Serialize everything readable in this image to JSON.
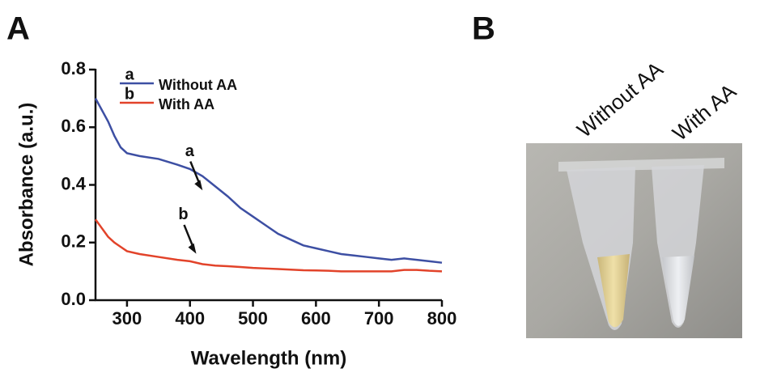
{
  "panel_labels": [
    "A",
    "B"
  ],
  "chart_data": {
    "type": "line",
    "xlabel": "Wavelength (nm)",
    "ylabel": "Absorbance (a.u.)",
    "x": [
      250,
      260,
      270,
      280,
      290,
      300,
      320,
      350,
      380,
      400,
      420,
      440,
      460,
      480,
      500,
      520,
      540,
      560,
      580,
      600,
      620,
      640,
      660,
      680,
      700,
      720,
      740,
      760,
      780,
      800
    ],
    "series": [
      {
        "name": "Without AA",
        "label": "a",
        "color": "#3d4fa3",
        "values": [
          0.7,
          0.66,
          0.62,
          0.57,
          0.53,
          0.51,
          0.5,
          0.49,
          0.47,
          0.455,
          0.43,
          0.395,
          0.36,
          0.32,
          0.29,
          0.26,
          0.23,
          0.21,
          0.19,
          0.18,
          0.17,
          0.16,
          0.155,
          0.15,
          0.145,
          0.14,
          0.145,
          0.14,
          0.135,
          0.13
        ]
      },
      {
        "name": "With AA",
        "label": "b",
        "color": "#e2432a",
        "values": [
          0.28,
          0.25,
          0.22,
          0.2,
          0.185,
          0.17,
          0.16,
          0.15,
          0.14,
          0.135,
          0.125,
          0.12,
          0.118,
          0.115,
          0.112,
          0.11,
          0.108,
          0.106,
          0.104,
          0.103,
          0.102,
          0.1,
          0.1,
          0.1,
          0.1,
          0.1,
          0.105,
          0.105,
          0.102,
          0.1
        ]
      }
    ],
    "xlim": [
      250,
      800
    ],
    "xticks": [
      300,
      400,
      500,
      600,
      700,
      800
    ],
    "ylim": [
      0,
      0.8
    ],
    "yticks": [
      {
        "value": 0,
        "label": "0.0"
      },
      0.2,
      0.4,
      0.6,
      0.8
    ],
    "grid": false,
    "legend": "upper left"
  },
  "photo": {
    "labels": [
      "Without AA",
      "With AA"
    ]
  }
}
